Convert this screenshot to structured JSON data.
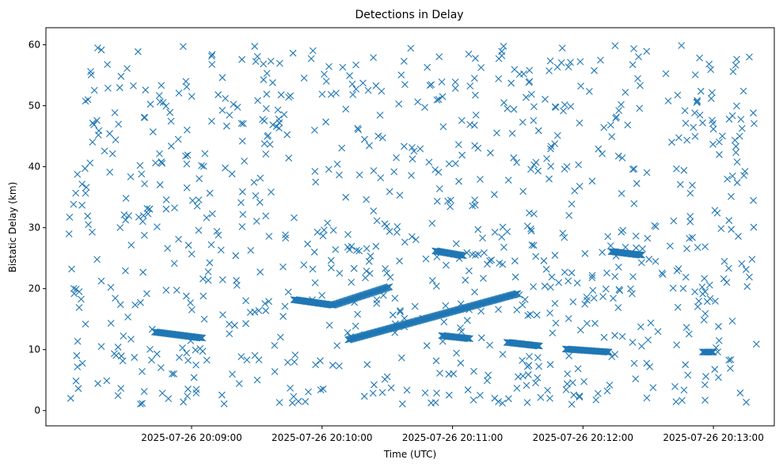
{
  "chart_data": {
    "type": "scatter",
    "title": "Detections in Delay",
    "xlabel": "Time (UTC)",
    "ylabel": "Bistatic Delay (km)",
    "marker": "x",
    "color": "#1f77b4",
    "grid": false,
    "ylim": [
      -2.5,
      62.8
    ],
    "xlim": [
      "2025-07-26 20:07:53",
      "2025-07-26 20:13:28"
    ],
    "x_ticks": [
      "2025-07-26 20:09:00",
      "2025-07-26 20:10:00",
      "2025-07-26 20:11:00",
      "2025-07-26 20:12:00",
      "2025-07-26 20:13:00"
    ],
    "y_ticks": [
      0,
      10,
      20,
      30,
      40,
      50,
      60
    ],
    "tracks": [
      {
        "x_start": "2025-07-26 20:08:43",
        "x_end": "2025-07-26 20:09:05",
        "y_start": 12.9,
        "y_end": 11.9
      },
      {
        "x_start": "2025-07-26 20:09:47",
        "x_end": "2025-07-26 20:10:05",
        "y_start": 18.2,
        "y_end": 17.3
      },
      {
        "x_start": "2025-07-26 20:10:05",
        "x_end": "2025-07-26 20:10:31",
        "y_start": 17.3,
        "y_end": 20.3
      },
      {
        "x_start": "2025-07-26 20:10:12",
        "x_end": "2025-07-26 20:11:30",
        "y_start": 11.6,
        "y_end": 19.2
      },
      {
        "x_start": "2025-07-26 20:10:55",
        "x_end": "2025-07-26 20:11:08",
        "y_start": 12.3,
        "y_end": 11.8
      },
      {
        "x_start": "2025-07-26 20:11:25",
        "x_end": "2025-07-26 20:11:40",
        "y_start": 11.2,
        "y_end": 10.6
      },
      {
        "x_start": "2025-07-26 20:10:52",
        "x_end": "2025-07-26 20:11:05",
        "y_start": 26.2,
        "y_end": 25.4
      },
      {
        "x_start": "2025-07-26 20:11:52",
        "x_end": "2025-07-26 20:12:12",
        "y_start": 10.1,
        "y_end": 9.6
      },
      {
        "x_start": "2025-07-26 20:12:13",
        "x_end": "2025-07-26 20:12:27",
        "y_start": 26.1,
        "y_end": 25.5
      },
      {
        "x_start": "2025-07-26 20:12:55",
        "x_end": "2025-07-26 20:13:00",
        "y_start": 9.6,
        "y_end": 9.6
      }
    ]
  }
}
